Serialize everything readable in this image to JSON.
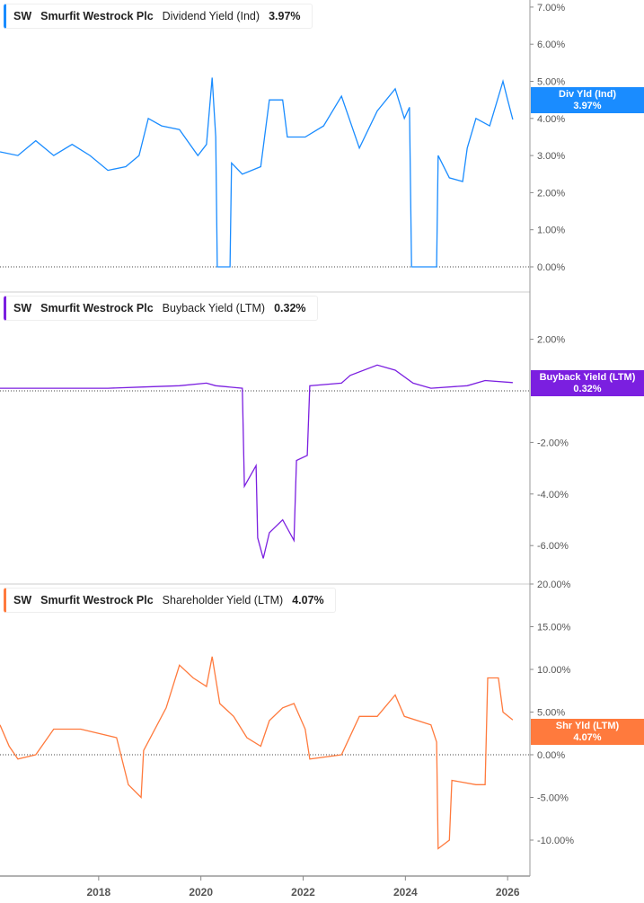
{
  "chart_data": [
    {
      "type": "line",
      "ticker": "SW",
      "company": "Smurfit Westrock Plc",
      "metric": "Dividend Yield (Ind)",
      "current": "3.97%",
      "tag_label": "Div Yld (Ind)",
      "color": "#1a8cff",
      "ylim": [
        0,
        7
      ],
      "yticks": [
        "7.00%",
        "6.00%",
        "5.00%",
        "4.00%",
        "3.00%",
        "2.00%",
        "1.00%",
        "0.00%"
      ],
      "x": [
        2016.07,
        2016.42,
        2016.77,
        2017.12,
        2017.48,
        2017.83,
        2018.18,
        2018.53,
        2018.79,
        2018.97,
        2019.23,
        2019.58,
        2019.94,
        2020.11,
        2020.22,
        2020.29,
        2020.32,
        2020.57,
        2020.6,
        2020.81,
        2021.17,
        2021.34,
        2021.6,
        2021.69,
        2022.04,
        2022.4,
        2022.75,
        2023.1,
        2023.45,
        2023.8,
        2023.98,
        2024.08,
        2024.12,
        2024.61,
        2024.64,
        2024.86,
        2025.12,
        2025.21,
        2025.38,
        2025.65,
        2025.91,
        2026.0,
        2026.1
      ],
      "y": [
        3.1,
        3.0,
        3.4,
        3.0,
        3.3,
        3.0,
        2.6,
        2.7,
        3.0,
        4.0,
        3.8,
        3.7,
        3.0,
        3.3,
        5.1,
        3.5,
        0,
        0,
        2.8,
        2.5,
        2.7,
        4.5,
        4.5,
        3.5,
        3.5,
        3.8,
        4.6,
        3.2,
        4.2,
        4.8,
        4.0,
        4.3,
        0,
        0,
        3.0,
        2.4,
        2.3,
        3.2,
        4.0,
        3.8,
        5.0,
        4.5,
        3.97
      ]
    },
    {
      "type": "line",
      "ticker": "SW",
      "company": "Smurfit Westrock Plc",
      "metric": "Buyback Yield (LTM)",
      "current": "0.32%",
      "tag_label": "Buyback Yield (LTM)",
      "color": "#7b1fe0",
      "ylim": [
        -7,
        3
      ],
      "yticks": [
        "2.00%",
        "-2.00%",
        "-4.00%",
        "-6.00%"
      ],
      "x": [
        2016.07,
        2016.77,
        2017.48,
        2018.18,
        2018.88,
        2019.58,
        2020.11,
        2020.29,
        2020.81,
        2020.85,
        2021.08,
        2021.11,
        2021.22,
        2021.34,
        2021.6,
        2021.82,
        2021.87,
        2022.08,
        2022.13,
        2022.75,
        2022.92,
        2023.45,
        2023.8,
        2024.15,
        2024.5,
        2025.21,
        2025.56,
        2026.1
      ],
      "y": [
        0.1,
        0.1,
        0.1,
        0.1,
        0.15,
        0.2,
        0.3,
        0.2,
        0.1,
        -3.7,
        -2.9,
        -5.7,
        -6.5,
        -5.5,
        -5.0,
        -5.8,
        -2.7,
        -2.5,
        0.2,
        0.3,
        0.6,
        1.0,
        0.8,
        0.3,
        0.1,
        0.2,
        0.4,
        0.32
      ]
    },
    {
      "type": "line",
      "ticker": "SW",
      "company": "Smurfit Westrock Plc",
      "metric": "Shareholder Yield (LTM)",
      "current": "4.07%",
      "tag_label": "Shr Yld (LTM)",
      "color": "#ff7a3d",
      "ylim": [
        -14,
        20
      ],
      "yticks": [
        "20.00%",
        "15.00%",
        "10.00%",
        "5.00%",
        "0.00%",
        "-5.00%",
        "-10.00%"
      ],
      "x": [
        2016.07,
        2016.25,
        2016.42,
        2016.77,
        2017.12,
        2017.65,
        2018.35,
        2018.58,
        2018.83,
        2018.88,
        2019.32,
        2019.58,
        2019.85,
        2020.11,
        2020.22,
        2020.37,
        2020.64,
        2020.9,
        2021.17,
        2021.34,
        2021.6,
        2021.82,
        2022.04,
        2022.13,
        2022.75,
        2023.1,
        2023.45,
        2023.8,
        2023.98,
        2024.5,
        2024.61,
        2024.64,
        2024.86,
        2024.91,
        2025.38,
        2025.56,
        2025.61,
        2025.82,
        2025.91,
        2026.1
      ],
      "y": [
        3.5,
        1.0,
        -0.5,
        0,
        3.0,
        3.0,
        2.0,
        -3.5,
        -5,
        0.5,
        5.5,
        10.5,
        9,
        8,
        11.5,
        6.0,
        4.5,
        2.0,
        1.0,
        4.0,
        5.5,
        6.0,
        3.0,
        -0.5,
        0,
        4.5,
        4.5,
        7,
        4.5,
        3.5,
        1.5,
        -11,
        -10,
        -3,
        -3.5,
        -3.5,
        9,
        9,
        5,
        4.07
      ]
    }
  ],
  "xaxis": {
    "ticks": [
      2018,
      2020,
      2022,
      2024,
      2026
    ]
  }
}
